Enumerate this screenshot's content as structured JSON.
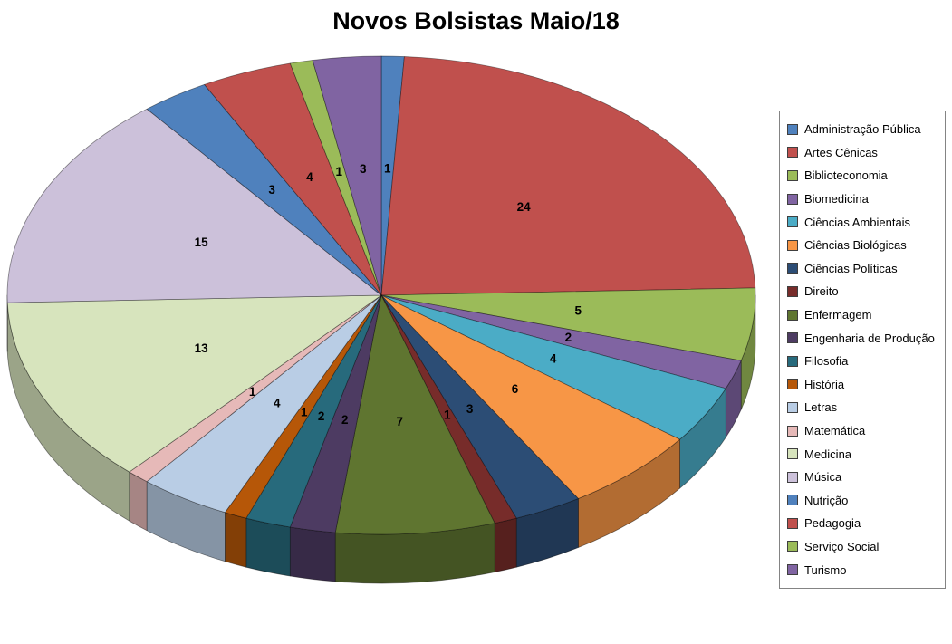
{
  "chart_data": {
    "type": "pie",
    "style": "3d",
    "title": "Novos Bolsistas Maio/18",
    "legend_position": "right",
    "direction": "clockwise",
    "start_angle": "12-oclock",
    "data_labels": "values",
    "background_color": "#FFFFFF",
    "categories": [
      "Administração Pública",
      "Artes Cênicas",
      "Biblioteconomia",
      "Biomedicina",
      "Ciências Ambientais",
      "Ciências Biológicas",
      "Ciências Políticas",
      "Direito",
      "Enfermagem",
      "Engenharia de Produção",
      "Filosofia",
      "História",
      "Letras",
      "Matemática",
      "Medicina",
      "Música",
      "Nutrição",
      "Pedagogia",
      "Serviço Social",
      "Turismo"
    ],
    "values": [
      1,
      24,
      5,
      2,
      4,
      6,
      3,
      1,
      7,
      2,
      2,
      1,
      4,
      1,
      13,
      15,
      3,
      4,
      1,
      3
    ],
    "colors": [
      "#4F81BD",
      "#C0504D",
      "#9BBB59",
      "#8064A2",
      "#4BACC6",
      "#F79646",
      "#2C4D75",
      "#772C2A",
      "#5F7530",
      "#4D3B62",
      "#276A7C",
      "#B65708",
      "#B9CDE5",
      "#E6B9B8",
      "#D7E4BD",
      "#CCC1DA",
      "#4F81BD",
      "#C0504D",
      "#9BBB59",
      "#8064A2"
    ]
  }
}
